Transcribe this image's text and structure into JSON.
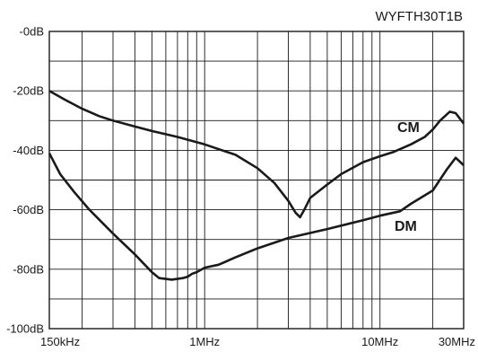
{
  "chart_data": {
    "type": "line",
    "title": "WYFTH30T1B",
    "x_scale": "log",
    "x_unit": "Hz",
    "xlim": [
      130000,
      30000000
    ],
    "ylim": [
      -100,
      0
    ],
    "grid": true,
    "y_ticks": [
      {
        "value": 0,
        "label": "-0dB"
      },
      {
        "value": -20,
        "label": "-20dB"
      },
      {
        "value": -40,
        "label": "-40dB"
      },
      {
        "value": -60,
        "label": "-60dB"
      },
      {
        "value": -80,
        "label": "-80dB"
      },
      {
        "value": -100,
        "label": "-100dB"
      }
    ],
    "x_ticks": [
      {
        "value": 150000,
        "label": "150kHz"
      },
      {
        "value": 1000000,
        "label": "1MHz"
      },
      {
        "value": 10000000,
        "label": "10MHz"
      },
      {
        "value": 30000000,
        "label": "30MHz"
      }
    ],
    "series": [
      {
        "name": "CM",
        "color": "#1a1a1a",
        "points": [
          [
            130000,
            -20
          ],
          [
            160000,
            -23
          ],
          [
            200000,
            -26
          ],
          [
            250000,
            -28.5
          ],
          [
            300000,
            -30
          ],
          [
            400000,
            -32
          ],
          [
            500000,
            -33.5
          ],
          [
            700000,
            -35.5
          ],
          [
            1000000,
            -38
          ],
          [
            1500000,
            -41.5
          ],
          [
            2000000,
            -46
          ],
          [
            2500000,
            -51
          ],
          [
            3000000,
            -57
          ],
          [
            3300000,
            -61
          ],
          [
            3500000,
            -62.5
          ],
          [
            3700000,
            -60
          ],
          [
            4000000,
            -56
          ],
          [
            5000000,
            -51.5
          ],
          [
            6000000,
            -48
          ],
          [
            8000000,
            -44
          ],
          [
            10000000,
            -42
          ],
          [
            12000000,
            -40.5
          ],
          [
            15000000,
            -38
          ],
          [
            18000000,
            -35.5
          ],
          [
            20000000,
            -33
          ],
          [
            22000000,
            -30
          ],
          [
            25000000,
            -27
          ],
          [
            27000000,
            -27.5
          ],
          [
            30000000,
            -31
          ]
        ]
      },
      {
        "name": "DM",
        "color": "#1a1a1a",
        "points": [
          [
            130000,
            -41
          ],
          [
            150000,
            -48
          ],
          [
            180000,
            -54
          ],
          [
            220000,
            -60
          ],
          [
            300000,
            -68
          ],
          [
            400000,
            -75
          ],
          [
            500000,
            -81
          ],
          [
            550000,
            -83
          ],
          [
            650000,
            -83.5
          ],
          [
            750000,
            -83
          ],
          [
            800000,
            -82.5
          ],
          [
            850000,
            -81.5
          ],
          [
            900000,
            -81
          ],
          [
            1000000,
            -79.5
          ],
          [
            1200000,
            -78.5
          ],
          [
            1500000,
            -76
          ],
          [
            2000000,
            -73
          ],
          [
            3000000,
            -69.5
          ],
          [
            5000000,
            -66.5
          ],
          [
            8000000,
            -63.5
          ],
          [
            10000000,
            -62
          ],
          [
            13000000,
            -60.5
          ],
          [
            15000000,
            -58
          ],
          [
            20000000,
            -53.5
          ],
          [
            24000000,
            -46.5
          ],
          [
            27000000,
            -42.5
          ],
          [
            30000000,
            -45
          ]
        ]
      }
    ]
  }
}
